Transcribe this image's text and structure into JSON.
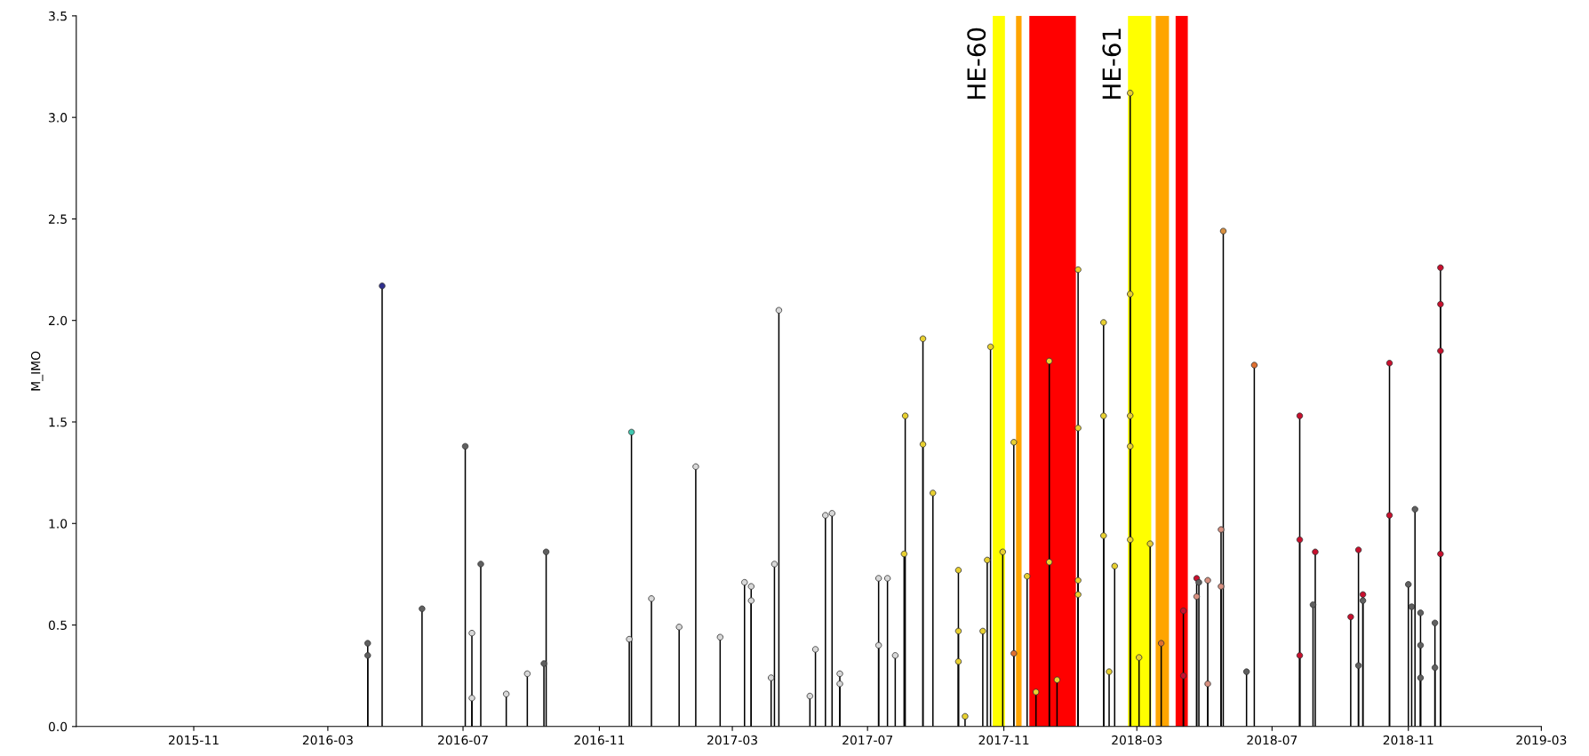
{
  "chart_data": {
    "type": "lollipop",
    "ylabel": "M_IMO",
    "x": [
      "2016-04-06",
      "2016-04-06",
      "2016-04-19",
      "2016-05-25",
      "2016-07-03",
      "2016-07-09",
      "2016-07-09",
      "2016-07-17",
      "2016-08-09",
      "2016-08-28",
      "2016-09-12",
      "2016-09-14",
      "2016-11-28",
      "2016-11-30",
      "2016-12-18",
      "2017-01-12",
      "2017-01-27",
      "2017-02-18",
      "2017-03-12",
      "2017-03-18",
      "2017-03-18",
      "2017-04-05",
      "2017-04-08",
      "2017-04-12",
      "2017-05-10",
      "2017-05-15",
      "2017-05-24",
      "2017-05-30",
      "2017-06-06",
      "2017-06-06",
      "2017-07-11",
      "2017-07-11",
      "2017-07-19",
      "2017-07-26",
      "2017-08-03",
      "2017-08-04",
      "2017-08-20",
      "2017-08-20",
      "2017-08-29",
      "2017-09-21",
      "2017-09-21",
      "2017-09-21",
      "2017-09-27",
      "2017-10-13",
      "2017-10-17",
      "2017-10-20",
      "2017-10-31",
      "2017-11-10",
      "2017-11-10",
      "2017-11-22",
      "2017-11-30",
      "2017-12-12",
      "2017-12-12",
      "2017-12-19",
      "2018-01-07",
      "2018-01-07",
      "2018-01-07",
      "2018-01-07",
      "2018-01-30",
      "2018-01-30",
      "2018-01-30",
      "2018-02-04",
      "2018-02-09",
      "2018-02-23",
      "2018-02-23",
      "2018-02-23",
      "2018-02-23",
      "2018-02-23",
      "2018-03-03",
      "2018-03-13",
      "2018-03-23",
      "2018-04-12",
      "2018-04-12",
      "2018-04-24",
      "2018-04-24",
      "2018-04-26",
      "2018-05-04",
      "2018-05-04",
      "2018-05-16",
      "2018-05-16",
      "2018-05-18",
      "2018-06-08",
      "2018-06-15",
      "2018-07-26",
      "2018-07-26",
      "2018-07-26",
      "2018-08-07",
      "2018-08-09",
      "2018-09-10",
      "2018-09-17",
      "2018-09-17",
      "2018-09-21",
      "2018-09-21",
      "2018-10-15",
      "2018-10-15",
      "2018-11-01",
      "2018-11-04",
      "2018-11-07",
      "2018-11-12",
      "2018-11-12",
      "2018-11-12",
      "2018-11-25",
      "2018-11-25",
      "2018-11-30",
      "2018-11-30",
      "2018-11-30",
      "2018-11-30"
    ],
    "values": [
      0.41,
      0.35,
      2.17,
      0.58,
      1.38,
      0.46,
      0.14,
      0.8,
      0.16,
      0.26,
      0.31,
      0.86,
      0.43,
      1.45,
      0.63,
      0.49,
      1.28,
      0.44,
      0.71,
      0.69,
      0.62,
      0.24,
      0.8,
      2.05,
      0.15,
      0.38,
      1.04,
      1.05,
      0.26,
      0.21,
      0.73,
      0.4,
      0.73,
      0.35,
      0.85,
      1.53,
      1.91,
      1.39,
      1.15,
      0.77,
      0.47,
      0.32,
      0.05,
      0.47,
      0.82,
      1.87,
      0.86,
      1.4,
      0.36,
      0.74,
      0.17,
      1.8,
      0.81,
      0.23,
      2.25,
      1.47,
      0.72,
      0.65,
      1.99,
      1.53,
      0.94,
      0.27,
      0.79,
      3.12,
      2.13,
      1.53,
      1.38,
      0.92,
      0.34,
      0.9,
      0.41,
      0.57,
      0.25,
      0.73,
      0.64,
      0.71,
      0.72,
      0.21,
      0.97,
      0.69,
      2.44,
      0.27,
      1.78,
      1.53,
      0.92,
      0.35,
      0.6,
      0.86,
      0.54,
      0.87,
      0.3,
      0.65,
      0.62,
      1.79,
      1.04,
      0.7,
      0.59,
      1.07,
      0.56,
      0.4,
      0.24,
      0.51,
      0.29,
      2.26,
      2.08,
      1.85,
      0.85
    ],
    "colors": [
      "#606060",
      "#606060",
      "#303090",
      "#606060",
      "#606060",
      "#d8d8d8",
      "#d8d8d8",
      "#606060",
      "#d8d8d8",
      "#d8d8d8",
      "#606060",
      "#606060",
      "#d8d8d8",
      "#40c8b0",
      "#d8d8d8",
      "#d8d8d8",
      "#d8d8d8",
      "#d8d8d8",
      "#d8d8d8",
      "#d8d8d8",
      "#d8d8d8",
      "#d8d8d8",
      "#d8d8d8",
      "#d8d8d8",
      "#d8d8d8",
      "#d8d8d8",
      "#d8d8d8",
      "#d8d8d8",
      "#d8d8d8",
      "#d8d8d8",
      "#d8d8d8",
      "#d8d8d8",
      "#d8d8d8",
      "#d8d8d8",
      "#e8d030",
      "#e8d030",
      "#e8d030",
      "#e8d030",
      "#e8d030",
      "#e8d030",
      "#e8d030",
      "#e8d030",
      "#e8d030",
      "#e8d030",
      "#e8d030",
      "#e8d030",
      "#e8d030",
      "#e8d030",
      "#e07030",
      "#e8d030",
      "#e8d030",
      "#e8d030",
      "#e8d030",
      "#e8d030",
      "#e8d030",
      "#e8d030",
      "#e8d030",
      "#e8d030",
      "#e8d030",
      "#e8d030",
      "#e8d030",
      "#e8d030",
      "#e8d030",
      "#e8d030",
      "#e8d030",
      "#e8d030",
      "#e8d030",
      "#e8d030",
      "#e8d030",
      "#e8d030",
      "#e07030",
      "#c8102e",
      "#c8102e",
      "#c8102e",
      "#d89080",
      "#606060",
      "#d89080",
      "#d89080",
      "#d89080",
      "#d89080",
      "#d89040",
      "#606060",
      "#e07030",
      "#c8102e",
      "#c8102e",
      "#c8102e",
      "#606060",
      "#c8102e",
      "#c8102e",
      "#c8102e",
      "#606060",
      "#c8102e",
      "#606060",
      "#c8102e",
      "#c8102e",
      "#606060",
      "#606060",
      "#606060",
      "#606060",
      "#606060",
      "#606060",
      "#606060",
      "#606060",
      "#c8102e",
      "#c8102e",
      "#c8102e",
      "#c8102e"
    ],
    "xlim": [
      "2015-07-18",
      "2019-03-01"
    ],
    "xticks": [
      {
        "value": "2015-11-01",
        "label": "2015-11"
      },
      {
        "value": "2016-03-01",
        "label": "2016-03"
      },
      {
        "value": "2016-07-01",
        "label": "2016-07"
      },
      {
        "value": "2016-11-01",
        "label": "2016-11"
      },
      {
        "value": "2017-03-01",
        "label": "2017-03"
      },
      {
        "value": "2017-07-01",
        "label": "2017-07"
      },
      {
        "value": "2017-11-01",
        "label": "2017-11"
      },
      {
        "value": "2018-03-01",
        "label": "2018-03"
      },
      {
        "value": "2018-07-01",
        "label": "2018-07"
      },
      {
        "value": "2018-11-01",
        "label": "2018-11"
      },
      {
        "value": "2019-03-01",
        "label": "2019-03"
      }
    ],
    "ylim": [
      0,
      3.5
    ],
    "yticks": [
      {
        "value": 0,
        "label": "0.0"
      },
      {
        "value": 0.5,
        "label": "0.5"
      },
      {
        "value": 1,
        "label": "1.0"
      },
      {
        "value": 1.5,
        "label": "1.5"
      },
      {
        "value": 2,
        "label": "2.0"
      },
      {
        "value": 2.5,
        "label": "2.5"
      },
      {
        "value": 3,
        "label": "3.0"
      },
      {
        "value": 3.5,
        "label": "3.5"
      }
    ],
    "bands": [
      {
        "axis": "x",
        "from": "2017-10-22",
        "to": "2017-11-02",
        "color": "#ffff00",
        "label": "HE-60"
      },
      {
        "axis": "x",
        "from": "2017-11-12",
        "to": "2017-11-17",
        "color": "#ffa500"
      },
      {
        "axis": "x",
        "from": "2017-11-24",
        "to": "2018-01-05",
        "color": "#ff0000"
      },
      {
        "axis": "x",
        "from": "2018-02-21",
        "to": "2018-03-14",
        "color": "#ffff00",
        "label": "HE-61"
      },
      {
        "axis": "x",
        "from": "2018-03-18",
        "to": "2018-03-30",
        "color": "#ffa500"
      },
      {
        "axis": "x",
        "from": "2018-04-05",
        "to": "2018-04-16",
        "color": "#ff0000"
      }
    ]
  }
}
